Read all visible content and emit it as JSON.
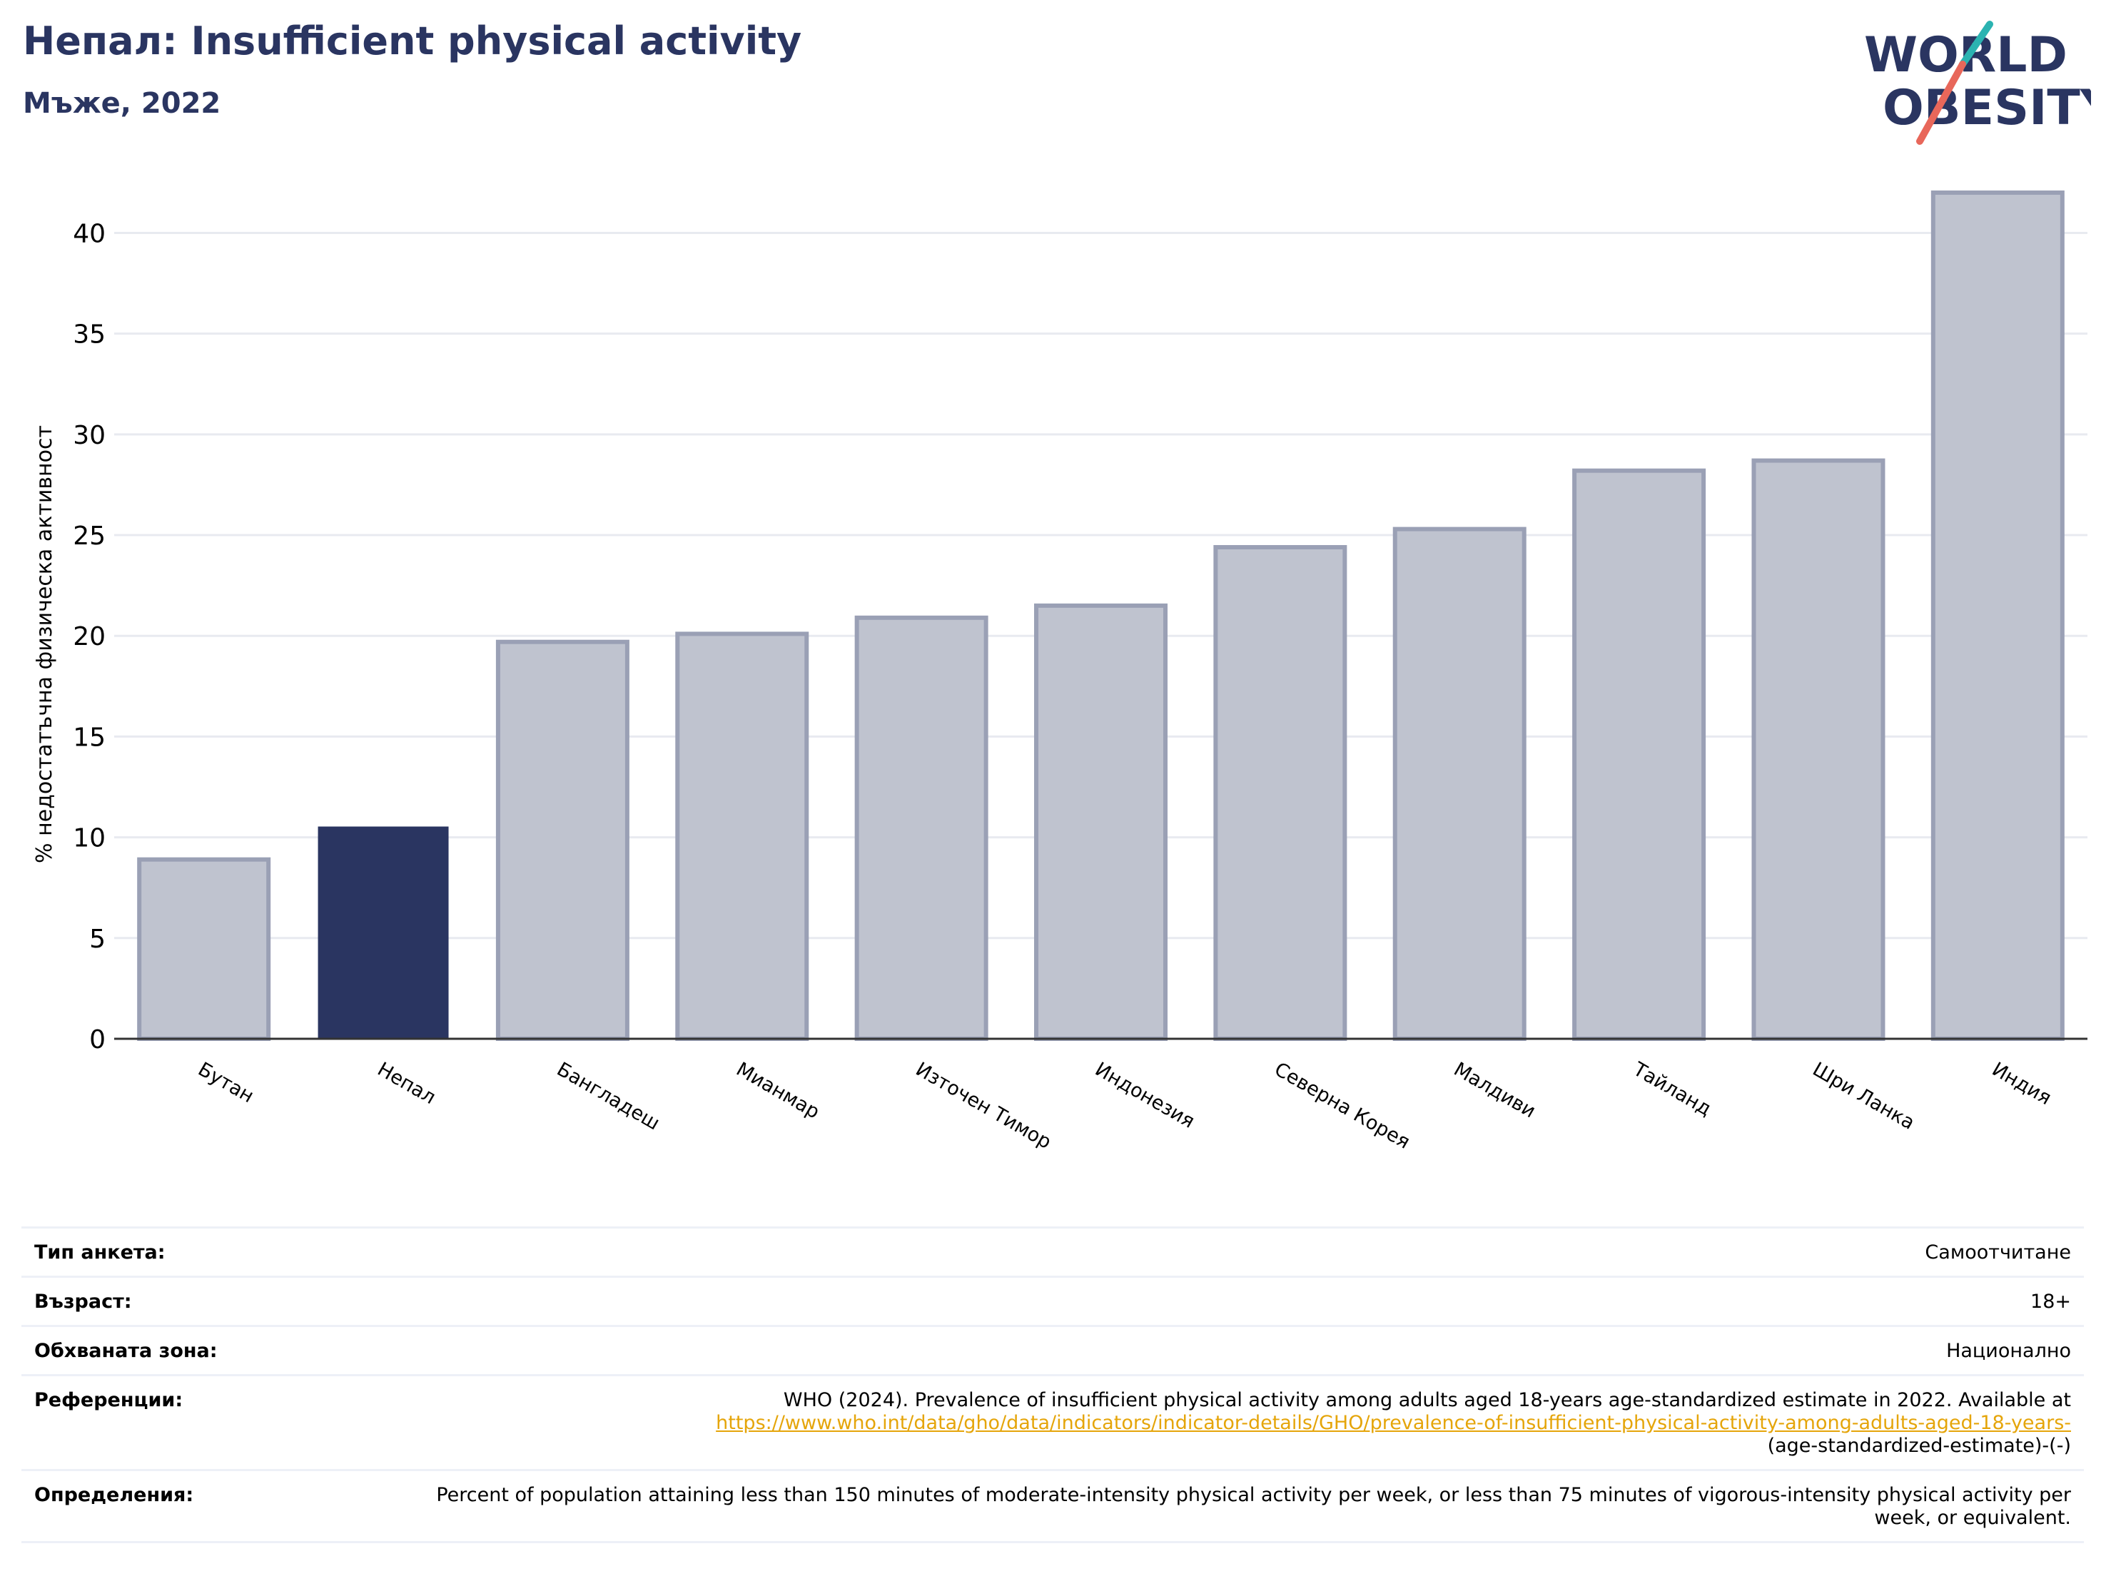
{
  "header": {
    "title": "Непал: Insufficient physical activity",
    "subtitle": "Мъже, 2022"
  },
  "logo": {
    "line1": "WORLD",
    "line2": "OBESITY"
  },
  "colors": {
    "highlight": "#2a3561",
    "bar": "#bfc3cf",
    "bar_stroke": "#9aa0b5",
    "grid": "#e8eaf0",
    "axis": "#333333"
  },
  "chart_data": {
    "type": "bar",
    "categories": [
      "Бутан",
      "Непал",
      "Бангладеш",
      "Мианмар",
      "Източен Тимор",
      "Индонезия",
      "Северна Корея",
      "Малдиви",
      "Тайланд",
      "Шри Ланка",
      "Индия"
    ],
    "values": [
      8.9,
      10.5,
      19.7,
      20.1,
      20.9,
      21.5,
      24.4,
      25.3,
      28.2,
      28.7,
      42.0
    ],
    "highlight": "Непал",
    "ylabel": "% недостатъчна физическа активност",
    "ylim": [
      0,
      42
    ],
    "yticks": [
      0,
      5,
      10,
      15,
      20,
      25,
      30,
      35,
      40
    ],
    "grid": true
  },
  "meta": [
    {
      "label": "Тип анкета:",
      "value": "Самоотчитане"
    },
    {
      "label": "Възраст:",
      "value": "18+"
    },
    {
      "label": "Обхваната зона:",
      "value": "Национално"
    },
    {
      "label": "Референции:",
      "value": "WHO (2024). Prevalence of insufficient physical activity among adults aged 18-years age-standardized estimate in 2022. Available at",
      "link": "https://www.who.int/data/gho/data/indicators/indicator-details/GHO/prevalence-of-insufficient-physical-activity-among-adults-aged-18-years-",
      "tail": "(age-standardized-estimate)-(-)"
    },
    {
      "label": "Определения:",
      "value": "Percent of population attaining less than 150 minutes of moderate-intensity physical activity per week, or less than 75 minutes of vigorous-intensity physical activity per week, or equivalent."
    }
  ]
}
